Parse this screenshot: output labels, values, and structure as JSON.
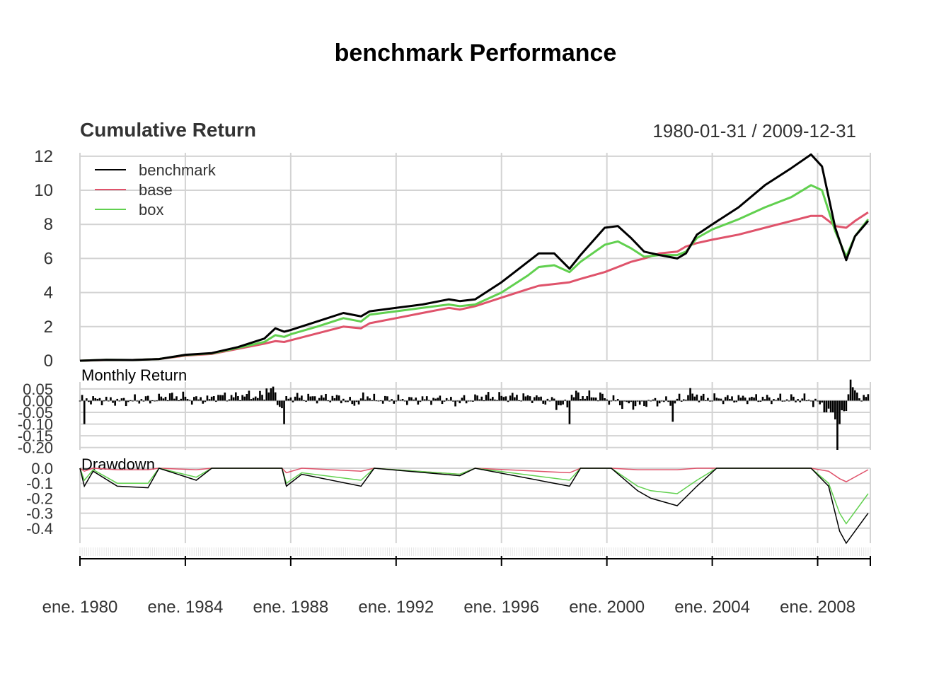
{
  "title": "benchmark Performance",
  "date_range": "1980-01-31 / 2009-12-31",
  "chart_data": [
    {
      "type": "line",
      "title": "Cumulative Return",
      "x": [
        "1980-01",
        "1981-01",
        "1982-01",
        "1983-01",
        "1984-01",
        "1985-01",
        "1986-01",
        "1987-01",
        "1987-06",
        "1987-10",
        "1988-01",
        "1989-01",
        "1990-01",
        "1990-09",
        "1991-01",
        "1992-01",
        "1993-01",
        "1994-01",
        "1994-06",
        "1995-01",
        "1996-01",
        "1997-01",
        "1997-06",
        "1998-01",
        "1998-08",
        "1999-01",
        "1999-12",
        "2000-06",
        "2000-12",
        "2001-06",
        "2002-01",
        "2002-09",
        "2003-01",
        "2003-06",
        "2004-01",
        "2005-01",
        "2006-01",
        "2007-01",
        "2007-10",
        "2008-03",
        "2008-09",
        "2009-02",
        "2009-06",
        "2009-12"
      ],
      "series": [
        {
          "name": "benchmark",
          "color": "#000000",
          "values": [
            0.0,
            0.05,
            0.04,
            0.1,
            0.35,
            0.45,
            0.8,
            1.3,
            1.9,
            1.7,
            1.8,
            2.3,
            2.8,
            2.6,
            2.9,
            3.1,
            3.3,
            3.6,
            3.5,
            3.6,
            4.6,
            5.8,
            6.3,
            6.3,
            5.4,
            6.2,
            7.8,
            7.9,
            7.2,
            6.4,
            6.2,
            6.0,
            6.3,
            7.4,
            8.0,
            9.0,
            10.3,
            11.3,
            12.1,
            11.4,
            7.8,
            5.9,
            7.3,
            8.2
          ]
        },
        {
          "name": "base",
          "color": "#DF536B",
          "values": [
            0.0,
            0.04,
            0.04,
            0.1,
            0.3,
            0.4,
            0.7,
            1.0,
            1.15,
            1.1,
            1.2,
            1.6,
            2.0,
            1.9,
            2.2,
            2.5,
            2.8,
            3.1,
            3.0,
            3.2,
            3.7,
            4.2,
            4.4,
            4.5,
            4.6,
            4.8,
            5.2,
            5.5,
            5.8,
            6.0,
            6.3,
            6.4,
            6.7,
            6.9,
            7.1,
            7.4,
            7.8,
            8.2,
            8.5,
            8.5,
            7.9,
            7.8,
            8.2,
            8.7
          ]
        },
        {
          "name": "box",
          "color": "#61D04F",
          "values": [
            0.0,
            0.05,
            0.04,
            0.1,
            0.33,
            0.43,
            0.75,
            1.1,
            1.5,
            1.4,
            1.55,
            2.0,
            2.5,
            2.3,
            2.7,
            2.9,
            3.1,
            3.3,
            3.2,
            3.3,
            4.0,
            5.0,
            5.5,
            5.6,
            5.2,
            5.8,
            6.8,
            7.0,
            6.6,
            6.1,
            6.2,
            6.2,
            6.4,
            7.2,
            7.7,
            8.3,
            9.0,
            9.6,
            10.3,
            10.0,
            7.6,
            6.1,
            7.3,
            8.3
          ]
        }
      ],
      "yticks": [
        "0",
        "2",
        "4",
        "6",
        "8",
        "10",
        "12"
      ],
      "ylim": [
        0,
        12.2
      ],
      "legend": "top-left",
      "grid": true
    },
    {
      "type": "bar",
      "title": "Monthly Return",
      "series_name": "benchmark",
      "yticks": [
        "0.05",
        "0.00",
        "-0.05",
        "-0.10",
        "-0.15",
        "-0.20"
      ],
      "ylim": [
        -0.21,
        0.08
      ],
      "notable": [
        {
          "date": "1980-03",
          "value": -0.1
        },
        {
          "date": "1987-10",
          "value": -0.1
        },
        {
          "date": "1998-08",
          "value": -0.1
        },
        {
          "date": "2002-07",
          "value": -0.09
        },
        {
          "date": "2008-09",
          "value": -0.08
        },
        {
          "date": "2008-10",
          "value": -0.21
        },
        {
          "date": "2008-11",
          "value": -0.1
        },
        {
          "date": "2009-04",
          "value": 0.09
        }
      ]
    },
    {
      "type": "line",
      "title": "Drawdown",
      "x": [
        "1980-01",
        "1980-03",
        "1980-07",
        "1981-06",
        "1982-08",
        "1983-01",
        "1984-06",
        "1985-01",
        "1987-09",
        "1987-11",
        "1988-06",
        "1990-09",
        "1991-03",
        "1994-06",
        "1995-01",
        "1998-08",
        "1999-01",
        "2000-03",
        "2001-03",
        "2001-09",
        "2002-09",
        "2003-06",
        "2004-03",
        "2007-10",
        "2008-06",
        "2008-11",
        "2009-02",
        "2009-12"
      ],
      "series": [
        {
          "name": "benchmark",
          "color": "#000000",
          "values": [
            0.0,
            -0.12,
            -0.02,
            -0.12,
            -0.13,
            0.0,
            -0.08,
            0.0,
            0.0,
            -0.12,
            -0.04,
            -0.12,
            0.0,
            -0.05,
            0.0,
            -0.12,
            0.0,
            0.0,
            -0.15,
            -0.2,
            -0.25,
            -0.12,
            0.0,
            0.0,
            -0.12,
            -0.42,
            -0.5,
            -0.3
          ]
        },
        {
          "name": "base",
          "color": "#DF536B",
          "values": [
            0.0,
            -0.02,
            0.0,
            -0.01,
            -0.01,
            0.0,
            -0.01,
            0.0,
            0.0,
            -0.03,
            0.0,
            -0.02,
            0.0,
            -0.04,
            0.0,
            -0.03,
            0.0,
            0.0,
            -0.01,
            -0.01,
            -0.01,
            0.0,
            0.0,
            0.0,
            -0.02,
            -0.07,
            -0.09,
            -0.01
          ]
        },
        {
          "name": "box",
          "color": "#61D04F",
          "values": [
            0.0,
            -0.08,
            -0.01,
            -0.1,
            -0.1,
            0.0,
            -0.06,
            0.0,
            0.0,
            -0.1,
            -0.03,
            -0.08,
            0.0,
            -0.04,
            0.0,
            -0.08,
            0.0,
            0.0,
            -0.12,
            -0.15,
            -0.17,
            -0.08,
            0.0,
            0.0,
            -0.1,
            -0.3,
            -0.37,
            -0.17
          ]
        }
      ],
      "yticks": [
        "0.0",
        "-0.1",
        "-0.2",
        "-0.3",
        "-0.4"
      ],
      "ylim": [
        -0.5,
        0.0
      ]
    }
  ],
  "xaxis": {
    "tick_labels": [
      "ene. 1980",
      "ene. 1984",
      "ene. 1988",
      "ene. 1992",
      "ene. 1996",
      "ene. 2000",
      "ene. 2004",
      "ene. 2008"
    ],
    "tick_years": [
      1980,
      1984,
      1988,
      1992,
      1996,
      2000,
      2004,
      2008
    ],
    "range": [
      1980.0,
      2010.0
    ]
  }
}
